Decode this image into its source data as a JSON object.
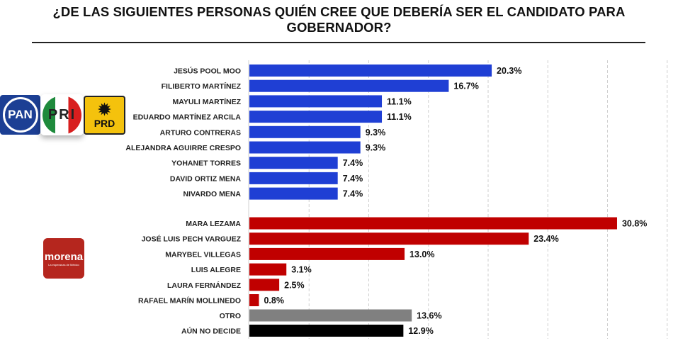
{
  "title": "¿DE LAS SIGUIENTES PERSONAS QUIÉN CREE QUE DEBERÍA SER EL CANDIDATO PARA GOBERNADOR?",
  "logos": {
    "pan": "PAN",
    "pri": "PRI",
    "prd": "PRD",
    "morena": "morena",
    "morena_tagline": "La esperanza de México"
  },
  "colors": {
    "pan_group": "#1f3fd4",
    "morena_group": "#c00000",
    "otro": "#808080",
    "no_decide": "#000000"
  },
  "chart_data": {
    "type": "bar",
    "orientation": "horizontal",
    "title": "¿DE LAS SIGUIENTES PERSONAS QUIÉN CREE QUE DEBERÍA SER EL CANDIDATO PARA GOBERNADOR?",
    "xlim": [
      0,
      35
    ],
    "grid": true,
    "unit": "%",
    "groups": [
      {
        "name": "PAN-PRI-PRD",
        "color": "#1f3fd4",
        "categories": [
          "JESÚS POOL MOO",
          "FILIBERTO MARTÍNEZ",
          "MAYULI MARTÍNEZ",
          "EDUARDO MARTÍNEZ ARCILA",
          "ARTURO CONTRERAS",
          "ALEJANDRA AGUIRRE CRESPO",
          "YOHANET TORRES",
          "DAVID ORTIZ MENA",
          "NIVARDO MENA"
        ],
        "values": [
          20.3,
          16.7,
          11.1,
          11.1,
          9.3,
          9.3,
          7.4,
          7.4,
          7.4
        ]
      },
      {
        "name": "MORENA",
        "color": "#c00000",
        "categories": [
          "MARA LEZAMA",
          "JOSÉ LUIS PECH VARGUEZ",
          "MARYBEL VILLEGAS",
          "LUIS ALEGRE",
          "LAURA FERNÁNDEZ",
          "RAFAEL MARÍN MOLLINEDO"
        ],
        "values": [
          30.8,
          23.4,
          13.0,
          3.1,
          2.5,
          0.8
        ]
      },
      {
        "name": "OTRO",
        "color": "#808080",
        "categories": [
          "OTRO"
        ],
        "values": [
          13.6
        ]
      },
      {
        "name": "AÚN NO DECIDE",
        "color": "#000000",
        "categories": [
          "AÚN NO DECIDE"
        ],
        "values": [
          12.9
        ]
      }
    ]
  }
}
